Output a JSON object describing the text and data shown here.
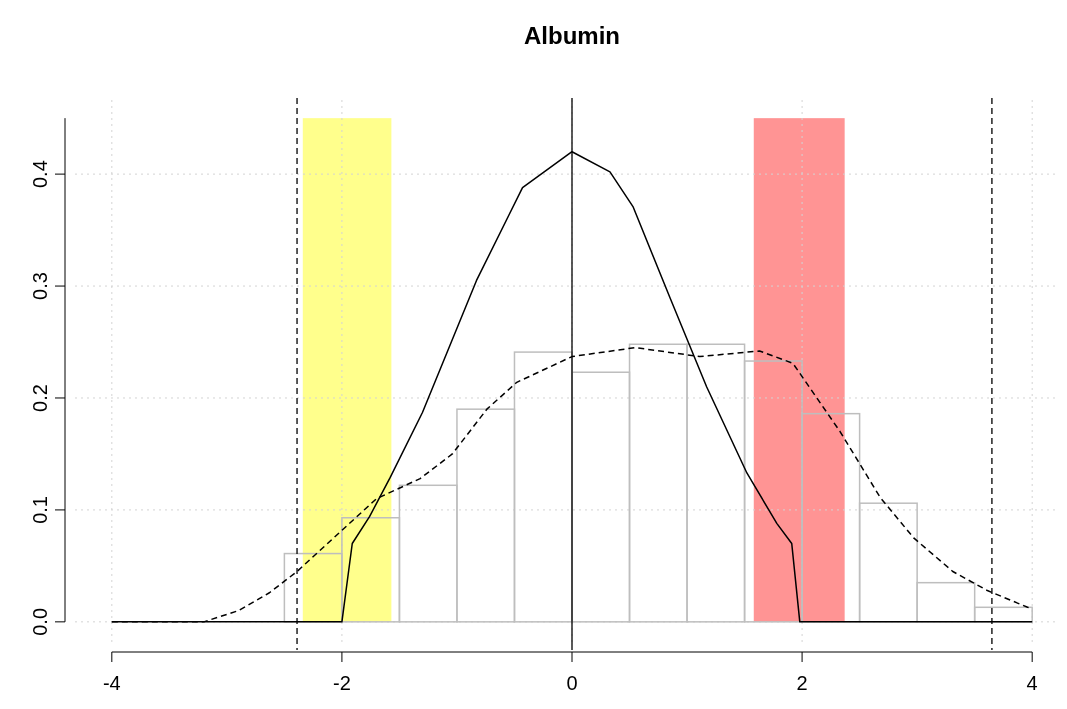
{
  "chart_data": {
    "type": "histogram",
    "title": "Albumin",
    "bins": [
      -2.5,
      -2,
      -1.5,
      -1,
      -0.5,
      0,
      0.5,
      1,
      1.5,
      2,
      2.5,
      3,
      3.5,
      4
    ],
    "values": [
      0.061,
      0.093,
      0.122,
      0.19,
      0.241,
      0.223,
      0.248,
      0.248,
      0.233,
      0.186,
      0.106,
      0.035,
      0.013
    ],
    "color": "#bebebe",
    "series": [
      {
        "type": "line",
        "color": "#000000",
        "line_style": "solid",
        "x": [
          -4,
          -2,
          -1.91,
          -1.76,
          -1.58,
          -1.3,
          -0.83,
          -0.43,
          0,
          0.33,
          0.53,
          0.85,
          1.17,
          1.52,
          1.78,
          1.91,
          1.98,
          4
        ],
        "values": [
          0,
          0,
          0.07,
          0.094,
          0.129,
          0.187,
          0.305,
          0.388,
          0.42,
          0.402,
          0.371,
          0.29,
          0.21,
          0.133,
          0.088,
          0.07,
          0,
          0
        ]
      },
      {
        "type": "line",
        "color": "#000000",
        "line_style": "dashed",
        "x": [
          -4,
          -3.2,
          -2.9,
          -2.63,
          -2.39,
          -1.7,
          -1.32,
          -1.04,
          -0.74,
          -0.48,
          0,
          0.55,
          1.11,
          1.63,
          1.92,
          2.33,
          2.68,
          2.97,
          3.31,
          3.61,
          3.96,
          4
        ],
        "values": [
          0,
          0,
          0.01,
          0.026,
          0.045,
          0.11,
          0.128,
          0.15,
          0.19,
          0.214,
          0.237,
          0.245,
          0.237,
          0.242,
          0.231,
          0.17,
          0.111,
          0.075,
          0.045,
          0.028,
          0.013,
          0.012
        ]
      }
    ],
    "ref_lines": [
      {
        "axis": "x",
        "value": -2.39,
        "color": "#000000",
        "line_style": "dashed"
      },
      {
        "axis": "x",
        "value": 3.65,
        "color": "#000000",
        "line_style": "dashed"
      },
      {
        "axis": "x",
        "value": 0,
        "color": "#000000",
        "line_style": "solid"
      }
    ],
    "bands": [
      {
        "axis": "x",
        "from": -2.34,
        "to": -1.57,
        "color": "#ffff80"
      },
      {
        "axis": "x",
        "from": 1.58,
        "to": 2.37,
        "color": "#ff8888"
      }
    ],
    "xlim": [
      -4,
      4
    ],
    "xticks": [
      -4,
      -2,
      0,
      2,
      4
    ],
    "ylim": [
      0,
      0.45
    ],
    "yticks": [
      {
        "value": 0,
        "label": "0.0"
      },
      0.1,
      0.2,
      0.3,
      0.4
    ],
    "grid": true
  }
}
